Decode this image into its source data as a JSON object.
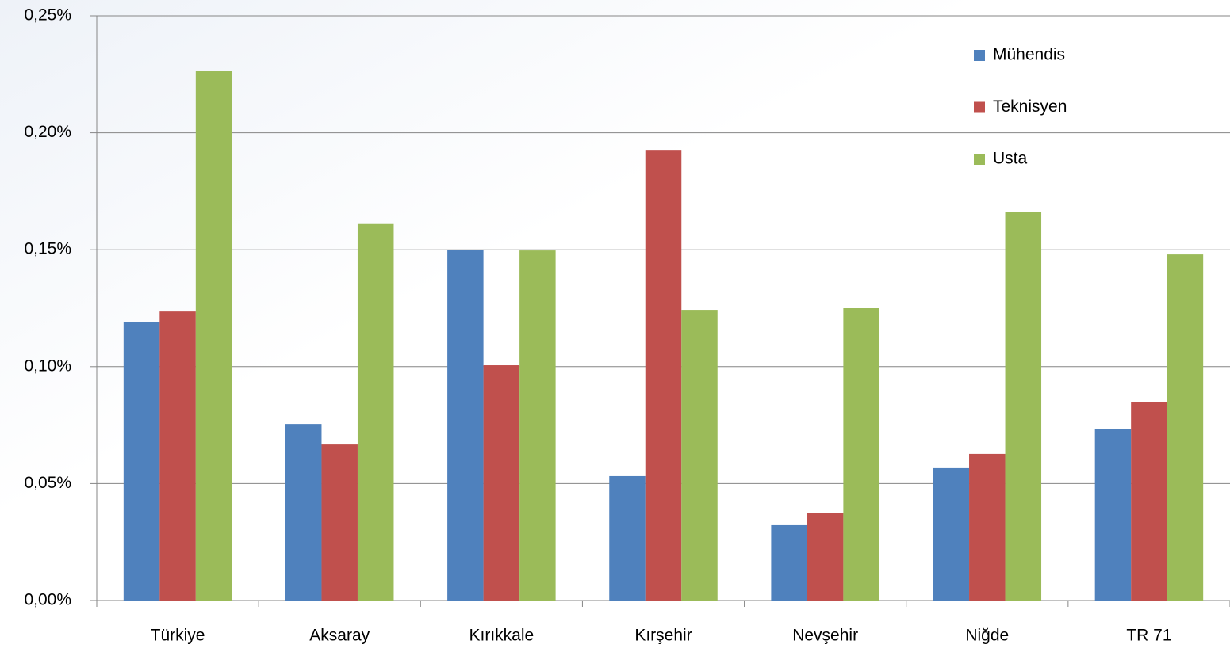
{
  "chart_data": {
    "type": "bar",
    "categories": [
      "Türkiye",
      "Aksaray",
      "Kırıkkale",
      "Kırşehir",
      "Nevşehir",
      "Niğde",
      "TR 71"
    ],
    "series": [
      {
        "name": "Mühendis",
        "color": "#4f81bd",
        "values": [
          0.119,
          0.0755,
          0.15,
          0.0532,
          0.0322,
          0.0566,
          0.0735
        ]
      },
      {
        "name": "Teknisyen",
        "color": "#c0504d",
        "values": [
          0.1236,
          0.0667,
          0.1006,
          0.1927,
          0.0376,
          0.0627,
          0.085
        ]
      },
      {
        "name": "Usta",
        "color": "#9bbb59",
        "values": [
          0.2266,
          0.161,
          0.1497,
          0.1243,
          0.125,
          0.1663,
          0.148
        ]
      }
    ],
    "ylim": [
      0,
      0.25
    ],
    "yticks": [
      {
        "value": 0,
        "label": "0,00%"
      },
      {
        "value": 0.05,
        "label": "0,05%"
      },
      {
        "value": 0.1,
        "label": "0,10%"
      },
      {
        "value": 0.15,
        "label": "0,15%"
      },
      {
        "value": 0.2,
        "label": "0,20%"
      },
      {
        "value": 0.25,
        "label": "0,25%"
      }
    ],
    "grid": true,
    "legend": "upper right"
  }
}
